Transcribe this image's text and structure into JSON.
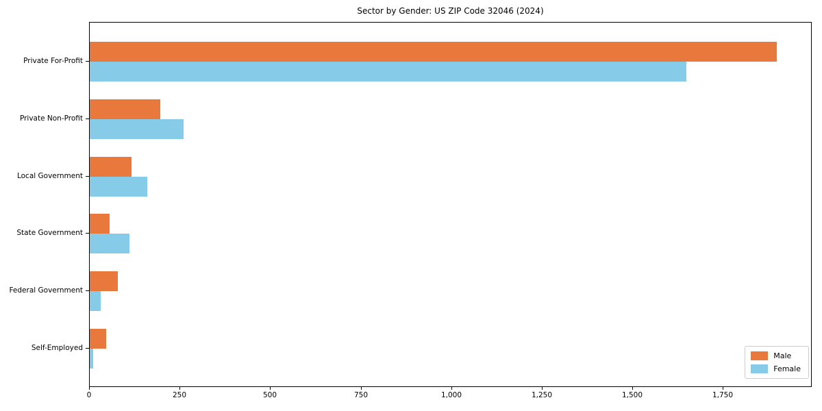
{
  "title": "Sector by Gender: US ZIP Code 32046 (2024)",
  "chart_data": {
    "type": "bar",
    "orientation": "horizontal",
    "title": "Sector by Gender: US ZIP Code 32046 (2024)",
    "categories": [
      "Private For-Profit",
      "Private Non-Profit",
      "Local Government",
      "State Government",
      "Federal Government",
      "Self-Employed"
    ],
    "series": [
      {
        "name": "Male",
        "color": "#E8783C",
        "values": [
          1900,
          195,
          115,
          55,
          78,
          45
        ]
      },
      {
        "name": "Female",
        "color": "#86CBE8",
        "values": [
          1650,
          260,
          160,
          110,
          30,
          10
        ]
      }
    ],
    "xlabel": "",
    "ylabel": "",
    "xlim": [
      0,
      1995
    ],
    "xticks": [
      0,
      250,
      500,
      750,
      1000,
      1250,
      1500,
      1750
    ],
    "xtick_labels": [
      "0",
      "250",
      "500",
      "750",
      "1,000",
      "1,250",
      "1,500",
      "1,750"
    ],
    "grid": false,
    "legend": {
      "position": "lower right",
      "entries": [
        "Male",
        "Female"
      ]
    }
  }
}
